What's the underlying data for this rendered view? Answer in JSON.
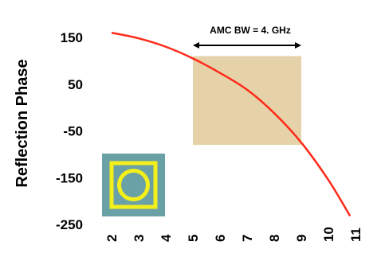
{
  "chart_data": {
    "type": "line",
    "xlabel": "",
    "ylabel": "Reflection Phase",
    "xlim": [
      2,
      11
    ],
    "ylim": [
      -250,
      150
    ],
    "xticks": [
      "2",
      "3",
      "4",
      "5",
      "6",
      "7",
      "8",
      "9",
      "10",
      "11"
    ],
    "yticks": [
      "150",
      "50",
      "-50",
      "-150",
      "-250"
    ],
    "series": [
      {
        "color": "#ff2a1a",
        "x": [
          2.0,
          3.0,
          4.0,
          5.0,
          6.0,
          7.0,
          8.0,
          9.0,
          10.0,
          10.8
        ],
        "y": [
          160,
          148,
          130,
          105,
          74,
          38,
          -12,
          -75,
          -155,
          -232
        ]
      }
    ],
    "band": {
      "x": [
        5.0,
        9.0
      ],
      "y": [
        -80,
        110
      ],
      "color": "#e6d2a8"
    },
    "annotation": {
      "text": "AMC BW = 4. GHz",
      "x_from": 5.0,
      "x_to": 9.0
    },
    "inset_icon": "amc-unit-cell-icon",
    "grid": false
  }
}
